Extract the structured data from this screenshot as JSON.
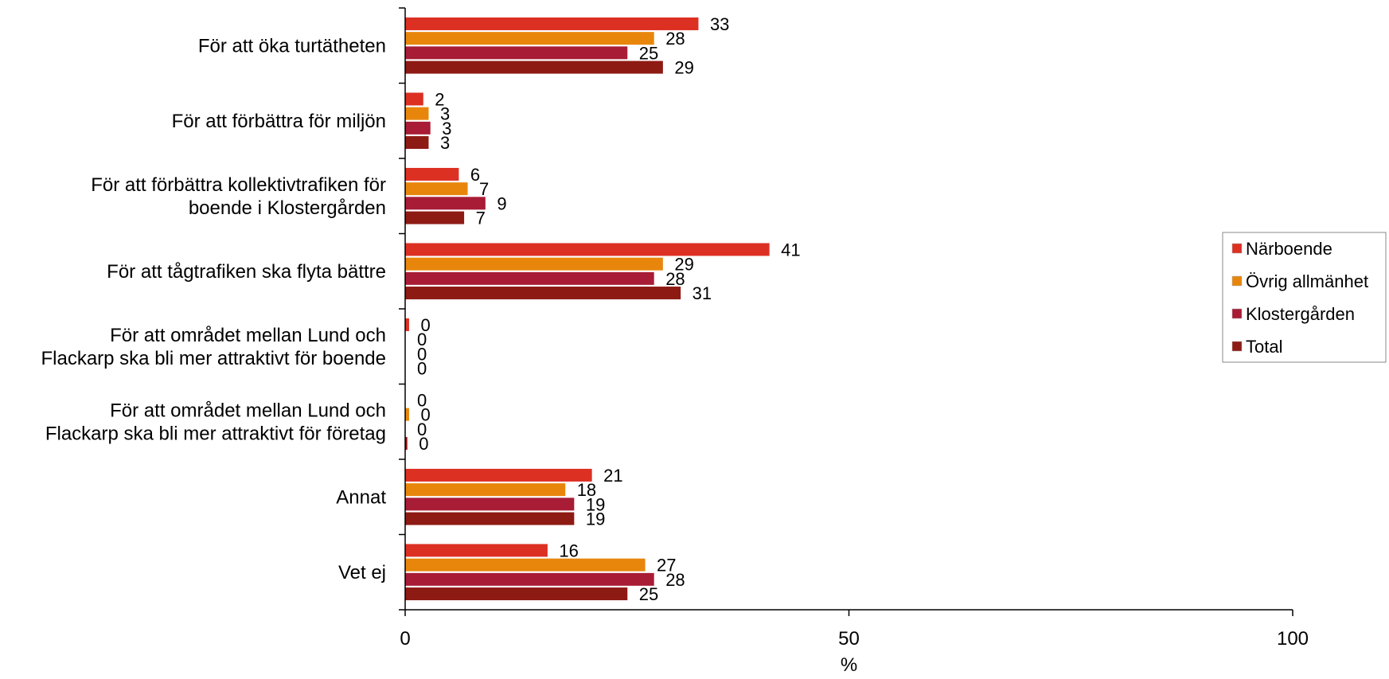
{
  "chart_data": {
    "type": "bar",
    "orientation": "horizontal",
    "categories": [
      [
        "För att öka turtätheten"
      ],
      [
        "För att förbättra för miljön"
      ],
      [
        "För att förbättra kollektivtrafiken för",
        "boende i Klostergården"
      ],
      [
        "För att tågtrafiken ska flyta bättre"
      ],
      [
        "För att området mellan Lund och",
        "Flackarp ska bli mer attraktivt för boende"
      ],
      [
        "För att området mellan Lund och",
        "Flackarp ska bli mer attraktivt för företag"
      ],
      [
        "Annat"
      ],
      [
        "Vet ej"
      ]
    ],
    "series": [
      {
        "name": "Närboende",
        "color": "#dc3023",
        "values": [
          33,
          2,
          6,
          41,
          0.4,
          0,
          21,
          16
        ],
        "labels": [
          "33",
          "2",
          "6",
          "41",
          "0",
          "0",
          "21",
          "16"
        ]
      },
      {
        "name": "Övrig allmänhet",
        "color": "#e8860c",
        "values": [
          28,
          2.6,
          7,
          29,
          0,
          0.4,
          18,
          27
        ],
        "labels": [
          "28",
          "3",
          "7",
          "29",
          "0",
          "0",
          "18",
          "27"
        ]
      },
      {
        "name": "Klostergården",
        "color": "#a81c35",
        "values": [
          25,
          2.8,
          9,
          28,
          0,
          0,
          19,
          28
        ],
        "labels": [
          "25",
          "3",
          "9",
          "28",
          "0",
          "0",
          "19",
          "28"
        ]
      },
      {
        "name": "Total",
        "color": "#8e1a14",
        "values": [
          29,
          2.6,
          6.6,
          31,
          0,
          0.2,
          19,
          25
        ],
        "labels": [
          "29",
          "3",
          "7",
          "31",
          "0",
          "0",
          "19",
          "25"
        ]
      }
    ],
    "xlim": [
      0,
      100
    ],
    "xticks": [
      "0",
      "50",
      "100"
    ],
    "xlabel": "%",
    "ylabel": "",
    "title": "",
    "legend_position": "right",
    "grid": false
  }
}
